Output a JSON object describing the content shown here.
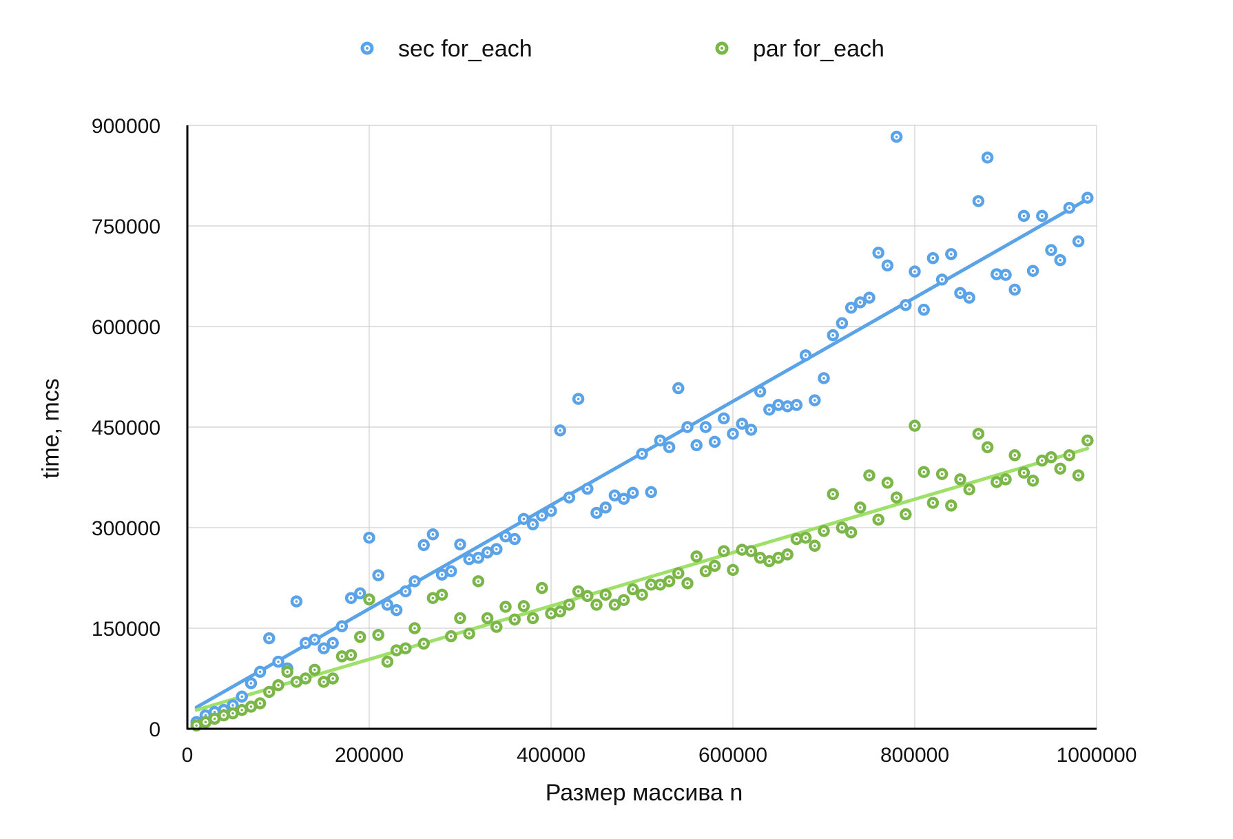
{
  "chart_data": {
    "type": "scatter",
    "xlabel": "Размер массива n",
    "ylabel": "time, mcs",
    "xlim": [
      0,
      1000000
    ],
    "ylim": [
      0,
      900000
    ],
    "x_ticks": [
      "0",
      "200000",
      "400000",
      "600000",
      "800000",
      "1000000"
    ],
    "y_ticks": [
      "0",
      "150000",
      "300000",
      "450000",
      "600000",
      "750000",
      "900000"
    ],
    "grid": true,
    "legend_position": "top",
    "series": [
      {
        "name": "sec for_each",
        "color": "#5ba3e8",
        "trendline": [
          [
            10000,
            32000
          ],
          [
            990000,
            790000
          ]
        ],
        "points": [
          [
            10000,
            10000
          ],
          [
            20000,
            20000
          ],
          [
            30000,
            25000
          ],
          [
            40000,
            28000
          ],
          [
            50000,
            35000
          ],
          [
            60000,
            48000
          ],
          [
            70000,
            68000
          ],
          [
            80000,
            85000
          ],
          [
            90000,
            135000
          ],
          [
            100000,
            100000
          ],
          [
            110000,
            90000
          ],
          [
            120000,
            190000
          ],
          [
            130000,
            128000
          ],
          [
            140000,
            133000
          ],
          [
            150000,
            120000
          ],
          [
            160000,
            128000
          ],
          [
            170000,
            153000
          ],
          [
            180000,
            195000
          ],
          [
            190000,
            202000
          ],
          [
            200000,
            285000
          ],
          [
            210000,
            229000
          ],
          [
            220000,
            185000
          ],
          [
            230000,
            177000
          ],
          [
            240000,
            205000
          ],
          [
            250000,
            220000
          ],
          [
            260000,
            274000
          ],
          [
            270000,
            290000
          ],
          [
            280000,
            230000
          ],
          [
            290000,
            235000
          ],
          [
            300000,
            275000
          ],
          [
            310000,
            253000
          ],
          [
            320000,
            255000
          ],
          [
            330000,
            263000
          ],
          [
            340000,
            268000
          ],
          [
            350000,
            287000
          ],
          [
            360000,
            283000
          ],
          [
            370000,
            313000
          ],
          [
            380000,
            305000
          ],
          [
            390000,
            318000
          ],
          [
            400000,
            325000
          ],
          [
            410000,
            445000
          ],
          [
            420000,
            345000
          ],
          [
            430000,
            492000
          ],
          [
            440000,
            358000
          ],
          [
            450000,
            322000
          ],
          [
            460000,
            330000
          ],
          [
            470000,
            348000
          ],
          [
            480000,
            343000
          ],
          [
            490000,
            352000
          ],
          [
            500000,
            410000
          ],
          [
            510000,
            353000
          ],
          [
            520000,
            430000
          ],
          [
            530000,
            420000
          ],
          [
            540000,
            508000
          ],
          [
            550000,
            450000
          ],
          [
            560000,
            423000
          ],
          [
            570000,
            450000
          ],
          [
            580000,
            428000
          ],
          [
            590000,
            463000
          ],
          [
            600000,
            440000
          ],
          [
            610000,
            455000
          ],
          [
            620000,
            446000
          ],
          [
            630000,
            503000
          ],
          [
            640000,
            476000
          ],
          [
            650000,
            483000
          ],
          [
            660000,
            481000
          ],
          [
            670000,
            483000
          ],
          [
            680000,
            557000
          ],
          [
            690000,
            490000
          ],
          [
            700000,
            523000
          ],
          [
            710000,
            587000
          ],
          [
            720000,
            605000
          ],
          [
            730000,
            628000
          ],
          [
            740000,
            636000
          ],
          [
            750000,
            643000
          ],
          [
            760000,
            710000
          ],
          [
            770000,
            691000
          ],
          [
            780000,
            883000
          ],
          [
            790000,
            632000
          ],
          [
            800000,
            682000
          ],
          [
            810000,
            625000
          ],
          [
            820000,
            702000
          ],
          [
            830000,
            670000
          ],
          [
            840000,
            708000
          ],
          [
            850000,
            650000
          ],
          [
            860000,
            643000
          ],
          [
            870000,
            787000
          ],
          [
            880000,
            852000
          ],
          [
            890000,
            678000
          ],
          [
            900000,
            677000
          ],
          [
            910000,
            655000
          ],
          [
            920000,
            765000
          ],
          [
            930000,
            683000
          ],
          [
            940000,
            765000
          ],
          [
            950000,
            714000
          ],
          [
            960000,
            699000
          ],
          [
            970000,
            777000
          ],
          [
            980000,
            727000
          ],
          [
            990000,
            792000
          ]
        ]
      },
      {
        "name": "par for_each",
        "color": "#7ab648",
        "trendline": [
          [
            10000,
            28000
          ],
          [
            990000,
            418000
          ]
        ],
        "points": [
          [
            10000,
            5000
          ],
          [
            20000,
            10000
          ],
          [
            30000,
            15000
          ],
          [
            40000,
            20000
          ],
          [
            50000,
            23000
          ],
          [
            60000,
            28000
          ],
          [
            70000,
            33000
          ],
          [
            80000,
            38000
          ],
          [
            90000,
            55000
          ],
          [
            100000,
            65000
          ],
          [
            110000,
            85000
          ],
          [
            120000,
            70000
          ],
          [
            130000,
            75000
          ],
          [
            140000,
            88000
          ],
          [
            150000,
            70000
          ],
          [
            160000,
            75000
          ],
          [
            170000,
            108000
          ],
          [
            180000,
            110000
          ],
          [
            190000,
            137000
          ],
          [
            200000,
            193000
          ],
          [
            210000,
            140000
          ],
          [
            220000,
            100000
          ],
          [
            230000,
            117000
          ],
          [
            240000,
            120000
          ],
          [
            250000,
            150000
          ],
          [
            260000,
            127000
          ],
          [
            270000,
            195000
          ],
          [
            280000,
            200000
          ],
          [
            290000,
            138000
          ],
          [
            300000,
            165000
          ],
          [
            310000,
            142000
          ],
          [
            320000,
            220000
          ],
          [
            330000,
            165000
          ],
          [
            340000,
            152000
          ],
          [
            350000,
            182000
          ],
          [
            360000,
            163000
          ],
          [
            370000,
            183000
          ],
          [
            380000,
            165000
          ],
          [
            390000,
            210000
          ],
          [
            400000,
            172000
          ],
          [
            410000,
            175000
          ],
          [
            420000,
            185000
          ],
          [
            430000,
            205000
          ],
          [
            440000,
            198000
          ],
          [
            450000,
            185000
          ],
          [
            460000,
            200000
          ],
          [
            470000,
            185000
          ],
          [
            480000,
            192000
          ],
          [
            490000,
            208000
          ],
          [
            500000,
            200000
          ],
          [
            510000,
            215000
          ],
          [
            520000,
            215000
          ],
          [
            530000,
            220000
          ],
          [
            540000,
            232000
          ],
          [
            550000,
            217000
          ],
          [
            560000,
            257000
          ],
          [
            570000,
            235000
          ],
          [
            580000,
            243000
          ],
          [
            590000,
            265000
          ],
          [
            600000,
            237000
          ],
          [
            610000,
            267000
          ],
          [
            620000,
            265000
          ],
          [
            630000,
            255000
          ],
          [
            640000,
            250000
          ],
          [
            650000,
            255000
          ],
          [
            660000,
            260000
          ],
          [
            670000,
            283000
          ],
          [
            680000,
            285000
          ],
          [
            690000,
            273000
          ],
          [
            700000,
            295000
          ],
          [
            710000,
            350000
          ],
          [
            720000,
            300000
          ],
          [
            730000,
            293000
          ],
          [
            740000,
            330000
          ],
          [
            750000,
            378000
          ],
          [
            760000,
            312000
          ],
          [
            770000,
            367000
          ],
          [
            780000,
            345000
          ],
          [
            790000,
            320000
          ],
          [
            800000,
            452000
          ],
          [
            810000,
            383000
          ],
          [
            820000,
            337000
          ],
          [
            830000,
            380000
          ],
          [
            840000,
            333000
          ],
          [
            850000,
            372000
          ],
          [
            860000,
            357000
          ],
          [
            870000,
            440000
          ],
          [
            880000,
            420000
          ],
          [
            890000,
            368000
          ],
          [
            900000,
            372000
          ],
          [
            910000,
            408000
          ],
          [
            920000,
            382000
          ],
          [
            930000,
            370000
          ],
          [
            940000,
            400000
          ],
          [
            950000,
            405000
          ],
          [
            960000,
            388000
          ],
          [
            970000,
            408000
          ],
          [
            980000,
            378000
          ],
          [
            990000,
            430000
          ]
        ]
      }
    ]
  }
}
